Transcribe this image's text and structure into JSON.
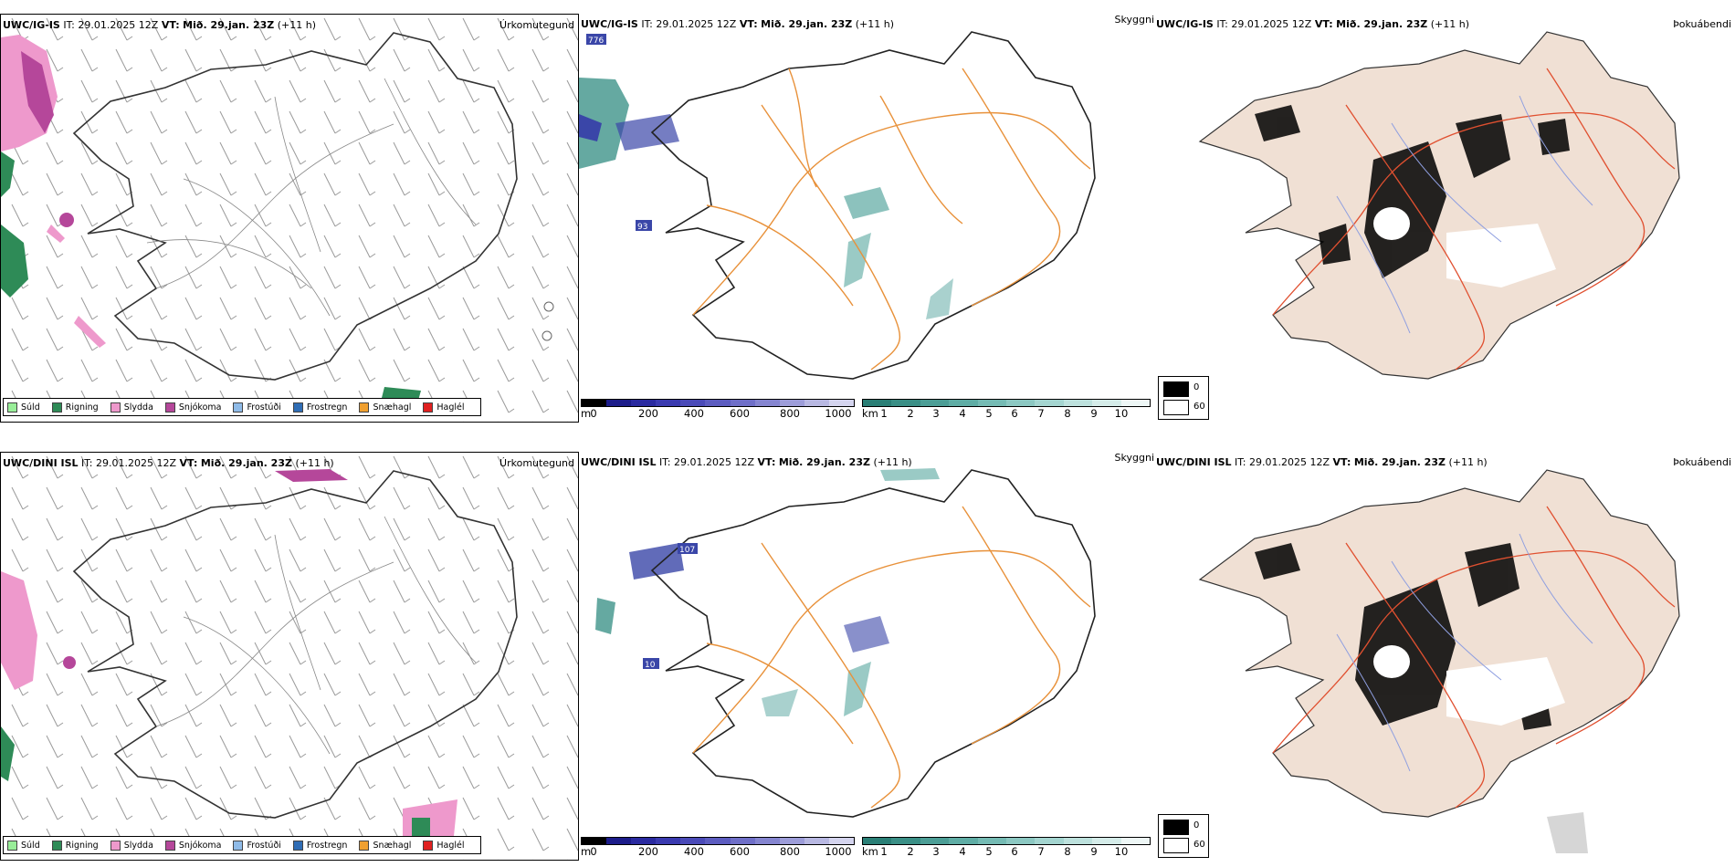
{
  "colors": {
    "sudld": "#99ee99",
    "rigning": "#2e8b57",
    "slydda": "#ee99cc",
    "snjokoma": "#b5479a",
    "frostudi": "#8fbbe8",
    "frostregn": "#2f6db5",
    "snaehagl": "#f0a030",
    "haglel": "#e02020",
    "roads": "#e8913a",
    "land": "#f0e0d4",
    "rivers": "#8f9fe0",
    "redroads": "#e05030"
  },
  "rows": [
    {
      "model": "UWC/IG-IS",
      "it_label": "IT:",
      "it_value": "29.01.2025 12Z",
      "vt_label": "VT:",
      "vt_value": "Mið. 29.jan. 23Z",
      "lead": "(+11 h)",
      "titles": [
        "Úrkomutegund",
        "Skyggni",
        "Þokuábendi"
      ],
      "labels": [
        "776",
        "93"
      ]
    },
    {
      "model": "UWC/DINI ISL",
      "it_label": "IT:",
      "it_value": "29.01.2025 12Z",
      "vt_label": "VT:",
      "vt_value": "Mið. 29.jan. 23Z",
      "lead": "(+11 h)",
      "titles": [
        "Úrkomutegund",
        "Skyggni",
        "Þokuábendi"
      ],
      "labels": [
        "107",
        "10"
      ]
    }
  ],
  "precip_legend": [
    "Súld",
    "Rigning",
    "Slydda",
    "Snjókoma",
    "Frostúði",
    "Frostregn",
    "Snæhagl",
    "Haglél"
  ],
  "height_scale": {
    "unit": "m",
    "ticks": [
      "0",
      "200",
      "400",
      "600",
      "800",
      "1000"
    ]
  },
  "km_scale": {
    "unit": "km",
    "ticks": [
      "1",
      "2",
      "3",
      "4",
      "5",
      "6",
      "7",
      "8",
      "9",
      "10"
    ]
  },
  "fog_legend": {
    "low": "0",
    "high": "60"
  }
}
